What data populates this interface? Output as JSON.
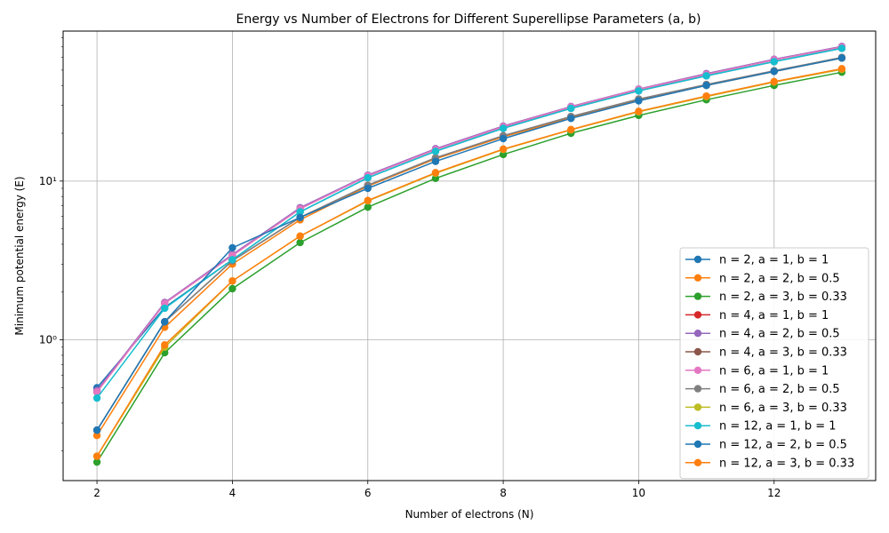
{
  "chart_data": {
    "type": "line",
    "title": "Energy vs Number of Electrons for Different Superellipse Parameters (a, b)",
    "xlabel": "Number of electrons (N)",
    "ylabel": "Minimum potential energy (E)",
    "yscale": "log",
    "xlim": [
      1.5,
      13.5
    ],
    "ylim": [
      0.13,
      88
    ],
    "grid": true,
    "legend_position": "lower-right",
    "x_ticks": [
      2,
      4,
      6,
      8,
      10,
      12
    ],
    "x_tick_labels": [
      "2",
      "4",
      "6",
      "8",
      "10",
      "12"
    ],
    "y_ticks": [
      1,
      10
    ],
    "y_tick_labels": [
      "10⁰",
      "10¹"
    ],
    "x": [
      2,
      3,
      4,
      5,
      6,
      7,
      8,
      9,
      10,
      11,
      12,
      13
    ],
    "series": [
      {
        "name": "n = 2, a = 1, b = 1",
        "color": "#1f77b4",
        "values": [
          0.5,
          1.6,
          3.2,
          6.4,
          10.5,
          15.4,
          21.5,
          28.7,
          37.0,
          46.0,
          56.5,
          68.5
        ]
      },
      {
        "name": "n = 2, a = 2, b = 0.5",
        "color": "#ff7f0e",
        "values": [
          0.25,
          1.2,
          3.0,
          5.7,
          9.3,
          13.8,
          19.0,
          25.0,
          32.5,
          40.0,
          49.0,
          59.5
        ]
      },
      {
        "name": "n = 2, a = 3, b = 0.33",
        "color": "#2ca02c",
        "values": [
          0.17,
          0.83,
          2.1,
          4.1,
          6.85,
          10.4,
          14.7,
          20.0,
          25.9,
          32.5,
          40.0,
          48.5
        ]
      },
      {
        "name": "n = 4, a = 1, b = 1",
        "color": "#d62728",
        "values": [
          0.47,
          1.7,
          3.4,
          6.7,
          10.8,
          15.8,
          22.0,
          29.3,
          37.8,
          47.0,
          58.0,
          70.0
        ]
      },
      {
        "name": "n = 4, a = 2, b = 0.5",
        "color": "#9467bd",
        "values": [
          0.48,
          1.72,
          3.45,
          6.8,
          10.9,
          16.0,
          22.2,
          29.5,
          38.0,
          47.5,
          58.5,
          70.5
        ]
      },
      {
        "name": "n = 4, a = 3, b = 0.33",
        "color": "#8c564b",
        "values": [
          0.27,
          1.3,
          3.15,
          5.9,
          9.4,
          14.0,
          19.3,
          25.5,
          32.8,
          40.5,
          49.5,
          60.0
        ]
      },
      {
        "name": "n = 6, a = 1, b = 1",
        "color": "#e377c2",
        "values": [
          0.47,
          1.7,
          3.4,
          6.7,
          10.8,
          15.8,
          22.0,
          29.3,
          37.8,
          47.0,
          58.0,
          70.0
        ]
      },
      {
        "name": "n = 6, a = 2, b = 0.5",
        "color": "#7f7f7f",
        "values": [
          0.27,
          1.3,
          3.15,
          5.9,
          9.4,
          14.0,
          19.3,
          25.5,
          32.8,
          40.5,
          49.5,
          60.0
        ]
      },
      {
        "name": "n = 6, a = 3, b = 0.33",
        "color": "#bcbd22",
        "values": [
          0.185,
          0.9,
          2.35,
          4.5,
          7.5,
          11.2,
          15.8,
          21.0,
          27.3,
          34.0,
          42.0,
          50.5
        ]
      },
      {
        "name": "n = 12, a = 1, b = 1",
        "color": "#17becf",
        "values": [
          0.43,
          1.58,
          3.2,
          6.4,
          10.5,
          15.4,
          21.5,
          28.7,
          37.0,
          46.0,
          56.5,
          68.5
        ]
      },
      {
        "name": "n = 12, a = 2, b = 0.5",
        "color": "#1f77b4",
        "values": [
          0.27,
          1.3,
          3.8,
          5.9,
          9.0,
          13.3,
          18.5,
          24.8,
          32.0,
          40.0,
          49.0,
          59.5
        ]
      },
      {
        "name": "n = 12, a = 3, b = 0.33",
        "color": "#ff7f0e",
        "values": [
          0.185,
          0.93,
          2.35,
          4.5,
          7.55,
          11.3,
          15.9,
          21.1,
          27.5,
          34.3,
          42.3,
          51.0
        ]
      }
    ]
  }
}
